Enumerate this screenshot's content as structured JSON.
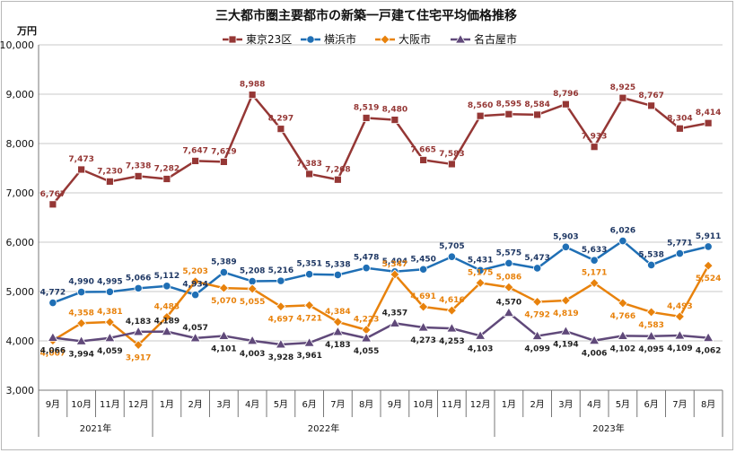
{
  "chart_data": {
    "type": "line",
    "title": "三大都市圏主要都市の新築一戸建て住宅平均価格推移",
    "unit_label": "万円",
    "ylim": [
      3000,
      10000
    ],
    "yticks": [
      3000,
      4000,
      5000,
      6000,
      7000,
      8000,
      9000,
      10000
    ],
    "ytick_labels": [
      "3,000",
      "4,000",
      "5,000",
      "6,000",
      "7,000",
      "8,000",
      "9,000",
      "10,000"
    ],
    "categories": [
      "9月",
      "10月",
      "11月",
      "12月",
      "1月",
      "2月",
      "3月",
      "4月",
      "5月",
      "6月",
      "7月",
      "8月",
      "9月",
      "10月",
      "11月",
      "12月",
      "1月",
      "2月",
      "3月",
      "4月",
      "5月",
      "6月",
      "7月",
      "8月"
    ],
    "years": [
      {
        "label": "2021年",
        "start": 0,
        "end": 3
      },
      {
        "label": "2022年",
        "start": 4,
        "end": 15
      },
      {
        "label": "2023年",
        "start": 16,
        "end": 23
      }
    ],
    "grid": true,
    "legend_position": "top",
    "series": [
      {
        "name": "東京23区",
        "color": "#953735",
        "marker": "square",
        "values": [
          6767,
          7473,
          7230,
          7338,
          7282,
          7647,
          7629,
          8988,
          8297,
          7383,
          7268,
          8519,
          8480,
          7665,
          7583,
          8560,
          8595,
          8584,
          8796,
          7933,
          8925,
          8767,
          8304,
          8414
        ],
        "labels": [
          "6,767",
          "7,473",
          "7,230",
          "7,338",
          "7,282",
          "7,647",
          "7,629",
          "8,988",
          "8,297",
          "7,383",
          "7,268",
          "8,519",
          "8,480",
          "7,665",
          "7,583",
          "8,560",
          "8,595",
          "8,584",
          "8,796",
          "7,933",
          "8,925",
          "8,767",
          "8,304",
          "8,414"
        ]
      },
      {
        "name": "横浜市",
        "color": "#1f6fb5",
        "marker": "circle",
        "values": [
          4772,
          4990,
          4995,
          5066,
          5112,
          4934,
          5389,
          5208,
          5216,
          5351,
          5338,
          5478,
          5404,
          5450,
          5705,
          5431,
          5575,
          5473,
          5903,
          5633,
          6026,
          5538,
          5771,
          5911
        ],
        "labels": [
          "4,772",
          "4,990",
          "4,995",
          "5,066",
          "5,112",
          "4,934",
          "5,389",
          "5,208",
          "5,216",
          "5,351",
          "5,338",
          "5,478",
          "5,404",
          "5,450",
          "5,705",
          "5,431",
          "5,575",
          "5,473",
          "5,903",
          "5,633",
          "6,026",
          "5,538",
          "5,771",
          "5,911"
        ]
      },
      {
        "name": "大阪市",
        "color": "#e8820c",
        "marker": "diamond",
        "values": [
          4007,
          4358,
          4381,
          3917,
          4483,
          5203,
          5070,
          5055,
          4697,
          4721,
          4384,
          4223,
          5347,
          4691,
          4616,
          5175,
          5086,
          4792,
          4819,
          5171,
          4766,
          4583,
          4493,
          5524
        ],
        "labels": [
          "4,007",
          "4,358",
          "4,381",
          "3,917",
          "4,483",
          "5,203",
          "5,070",
          "5,055",
          "4,697",
          "4,721",
          "4,384",
          "4,223",
          "5,347",
          "4,691",
          "4,616",
          "5,175",
          "5,086",
          "4,792",
          "4,819",
          "5,171",
          "4,766",
          "4,583",
          "4,493",
          "5,524"
        ]
      },
      {
        "name": "名古屋市",
        "color": "#60497a",
        "marker": "triangle",
        "values": [
          4066,
          3994,
          4059,
          4183,
          4189,
          4057,
          4101,
          4003,
          3928,
          3961,
          4183,
          4055,
          4357,
          4273,
          4253,
          4103,
          4570,
          4099,
          4194,
          4006,
          4102,
          4095,
          4109,
          4062
        ],
        "labels": [
          "4,066",
          "3,994",
          "4,059",
          "4,183",
          "4,189",
          "4,057",
          "4,101",
          "4,003",
          "3,928",
          "3,961",
          "4,183",
          "4,055",
          "4,357",
          "4,273",
          "4,253",
          "4,103",
          "4,570",
          "4,099",
          "4,194",
          "4,006",
          "4,102",
          "4,095",
          "4,109",
          "4,062"
        ]
      }
    ]
  }
}
